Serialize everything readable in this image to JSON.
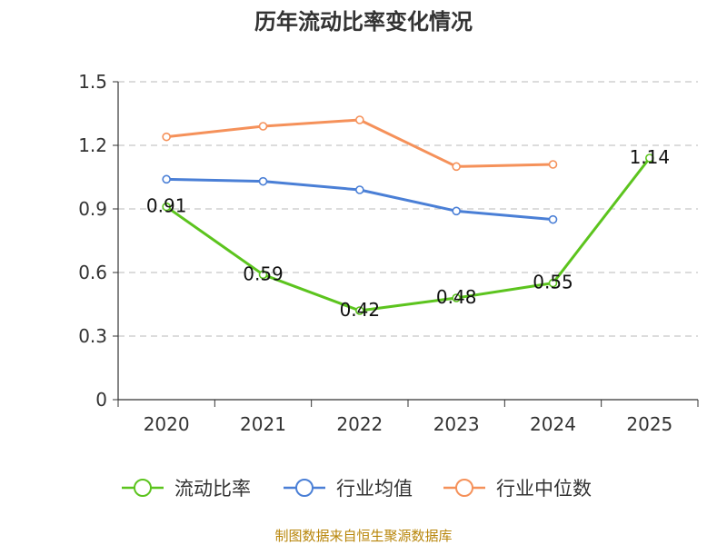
{
  "chart_data": {
    "type": "line",
    "title": "历年流动比率变化情况",
    "categories": [
      "2020",
      "2021",
      "2022",
      "2023",
      "2024",
      "2025"
    ],
    "ylim": [
      0,
      1.5
    ],
    "yticks": [
      "0",
      "0.3",
      "0.6",
      "0.9",
      "1.2",
      "1.5"
    ],
    "ytick_values": [
      0,
      0.3,
      0.6,
      0.9,
      1.2,
      1.5
    ],
    "grid": true,
    "legend_position": "bottom",
    "series": [
      {
        "name": "流动比率",
        "color": "#5cc41e",
        "values": [
          0.91,
          0.59,
          0.42,
          0.48,
          0.55,
          1.14
        ],
        "labels": [
          "0.91",
          "0.59",
          "0.42",
          "0.48",
          "0.55",
          "1.14"
        ]
      },
      {
        "name": "行业均值",
        "color": "#4a7fd6",
        "values": [
          1.04,
          1.03,
          0.99,
          0.89,
          0.85,
          null
        ]
      },
      {
        "name": "行业中位数",
        "color": "#f5915a",
        "values": [
          1.24,
          1.29,
          1.32,
          1.1,
          1.11,
          null
        ]
      }
    ],
    "source": "制图数据来自恒生聚源数据库"
  }
}
